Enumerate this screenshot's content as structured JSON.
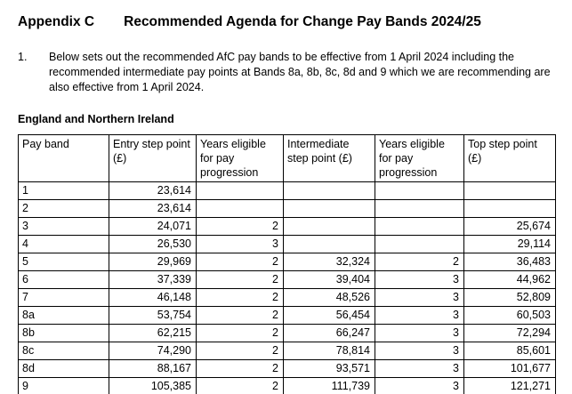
{
  "page": {
    "appendix_label": "Appendix C",
    "title": "Recommended Agenda for Change Pay Bands 2024/25",
    "list_number": "1.",
    "paragraph": "Below sets out the recommended AfC pay bands to be effective from 1 April 2024 including the recommended intermediate pay points at Bands 8a, 8b, 8c, 8d and 9 which we are recommending are also effective from 1 April 2024.",
    "region_heading": "England and Northern Ireland"
  },
  "table": {
    "headers": [
      "Pay band",
      "Entry step point (£)",
      "Years eligible for pay progression",
      "Intermediate step point (£)",
      "Years eligible for pay progression",
      "Top step point (£)"
    ],
    "rows": [
      [
        "1",
        "23,614",
        "",
        "",
        "",
        ""
      ],
      [
        "2",
        "23,614",
        "",
        "",
        "",
        ""
      ],
      [
        "3",
        "24,071",
        "2",
        "",
        "",
        "25,674"
      ],
      [
        "4",
        "26,530",
        "3",
        "",
        "",
        "29,114"
      ],
      [
        "5",
        "29,969",
        "2",
        "32,324",
        "2",
        "36,483"
      ],
      [
        "6",
        "37,339",
        "2",
        "39,404",
        "3",
        "44,962"
      ],
      [
        "7",
        "46,148",
        "2",
        "48,526",
        "3",
        "52,809"
      ],
      [
        "8a",
        "53,754",
        "2",
        "56,454",
        "3",
        "60,503"
      ],
      [
        "8b",
        "62,215",
        "2",
        "66,247",
        "3",
        "72,294"
      ],
      [
        "8c",
        "74,290",
        "2",
        "78,814",
        "3",
        "85,601"
      ],
      [
        "8d",
        "88,167",
        "2",
        "93,571",
        "3",
        "101,677"
      ],
      [
        "9",
        "105,385",
        "2",
        "111,739",
        "3",
        "121,271"
      ]
    ],
    "colors": {
      "text": "#000000",
      "border": "#000000",
      "background": "#ffffff"
    }
  }
}
